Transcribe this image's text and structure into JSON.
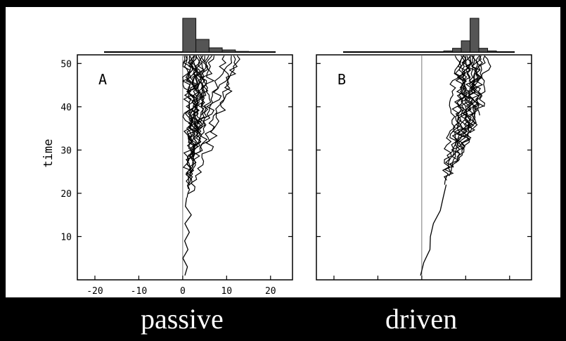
{
  "captions": {
    "passive": "passive",
    "driven": "driven"
  },
  "chart_data": [
    {
      "type": "line",
      "panel_label": "A",
      "ylabel": "time",
      "xlabel": "",
      "xlim": [
        -24,
        25
      ],
      "ylim": [
        0,
        52
      ],
      "x_ticks": [
        -20,
        -10,
        0,
        10,
        20
      ],
      "x_tick_labels": [
        "-20",
        "-10",
        "0",
        "10",
        "20"
      ],
      "y_ticks": [
        10,
        20,
        30,
        40,
        50
      ],
      "y_tick_labels": [
        "10",
        "20",
        "30",
        "40",
        "50"
      ],
      "reference_line_x": 0,
      "start": {
        "time": 1,
        "x": 0.5
      },
      "trunk": [
        [
          1,
          0.5
        ],
        [
          3,
          1
        ],
        [
          5,
          0.5
        ],
        [
          7,
          1.5
        ],
        [
          9,
          0.5
        ],
        [
          11,
          1.5
        ],
        [
          13,
          1
        ],
        [
          15,
          1.5
        ],
        [
          17,
          0.5
        ],
        [
          19,
          1
        ]
      ],
      "spread_per_time": 0.08,
      "branches": [
        {
          "branch_time": 19,
          "final_x": 12
        },
        {
          "branch_time": 20,
          "final_x": 4
        },
        {
          "branch_time": 21,
          "final_x": 1
        },
        {
          "branch_time": 22,
          "final_x": 7
        },
        {
          "branch_time": 22,
          "final_x": 2
        },
        {
          "branch_time": 23,
          "final_x": 3
        },
        {
          "branch_time": 24,
          "final_x": 9
        },
        {
          "branch_time": 25,
          "final_x": 1.5
        },
        {
          "branch_time": 26,
          "final_x": 5
        },
        {
          "branch_time": 27,
          "final_x": 2.5
        },
        {
          "branch_time": 28,
          "final_x": 13
        },
        {
          "branch_time": 29,
          "final_x": 3.5
        },
        {
          "branch_time": 30,
          "final_x": 0.5
        },
        {
          "branch_time": 31,
          "final_x": 6
        },
        {
          "branch_time": 32,
          "final_x": 2
        },
        {
          "branch_time": 33,
          "final_x": 4.5
        },
        {
          "branch_time": 34,
          "final_x": 11
        },
        {
          "branch_time": 35,
          "final_x": 1
        },
        {
          "branch_time": 36,
          "final_x": 3
        },
        {
          "branch_time": 38,
          "final_x": 5.5
        },
        {
          "branch_time": 40,
          "final_x": 2
        },
        {
          "branch_time": 42,
          "final_x": 4
        }
      ],
      "histogram": {
        "bin_edges": [
          0,
          3,
          6,
          9,
          12,
          15
        ],
        "counts": [
          16,
          6,
          2,
          1,
          0.3
        ]
      }
    },
    {
      "type": "line",
      "panel_label": "B",
      "ylabel": "",
      "xlabel": "",
      "xlim": [
        -24,
        25
      ],
      "ylim": [
        0,
        52
      ],
      "x_ticks": [
        -20,
        -10,
        0,
        10,
        20
      ],
      "x_tick_labels": [],
      "y_ticks": [
        10,
        20,
        30,
        40,
        50
      ],
      "y_tick_labels": [],
      "reference_line_x": 0,
      "start": {
        "time": 1,
        "x": 0.2
      },
      "trunk": [
        [
          1,
          0.2
        ],
        [
          4,
          0.8
        ],
        [
          7,
          1.5
        ],
        [
          10,
          2.4
        ],
        [
          13,
          3.1
        ],
        [
          16,
          3.8
        ],
        [
          19,
          4.5
        ],
        [
          22,
          5.2
        ]
      ],
      "spread_per_time": 0.25,
      "branches": [
        {
          "branch_time": 22,
          "final_x": 8
        },
        {
          "branch_time": 23,
          "final_x": 9
        },
        {
          "branch_time": 24,
          "final_x": 10
        },
        {
          "branch_time": 25,
          "final_x": 11
        },
        {
          "branch_time": 26,
          "final_x": 12
        },
        {
          "branch_time": 26,
          "final_x": 9.5
        },
        {
          "branch_time": 27,
          "final_x": 13
        },
        {
          "branch_time": 28,
          "final_x": 10.5
        },
        {
          "branch_time": 29,
          "final_x": 14
        },
        {
          "branch_time": 30,
          "final_x": 11.5
        },
        {
          "branch_time": 31,
          "final_x": 12.5
        },
        {
          "branch_time": 32,
          "final_x": 9
        },
        {
          "branch_time": 33,
          "final_x": 13.5
        },
        {
          "branch_time": 34,
          "final_x": 10
        },
        {
          "branch_time": 35,
          "final_x": 11
        },
        {
          "branch_time": 36,
          "final_x": 15
        },
        {
          "branch_time": 38,
          "final_x": 12
        },
        {
          "branch_time": 40,
          "final_x": 10.5
        }
      ],
      "histogram": {
        "bin_edges": [
          5,
          7,
          9,
          11,
          13,
          15,
          17
        ],
        "counts": [
          0.3,
          1,
          3,
          9,
          1,
          0.3
        ]
      }
    }
  ]
}
